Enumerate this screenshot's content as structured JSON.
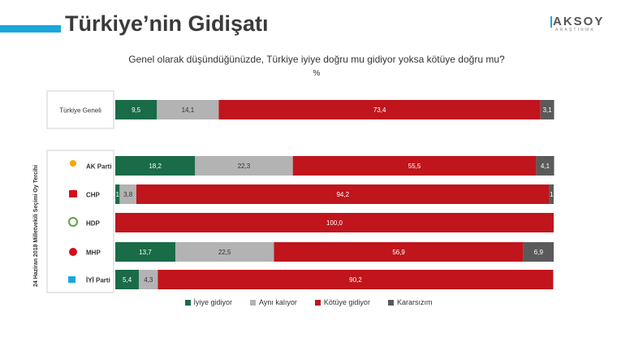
{
  "header": {
    "title": "Türkiye’nin Gidişatı",
    "logo_text": "AKSOY",
    "logo_subtext": "ARAŞTIRMA"
  },
  "question": "Genel olarak düşündüğünüzde, Türkiye iyiye doğru mu gidiyor yoksa kötüye doğru mu?",
  "unit": "%",
  "group_label": "24 Haziran 2018 Milletvekili Seçimi Oy Tercihi",
  "colors": {
    "accent": "#1aa7dd",
    "iyiye": "#1a6b47",
    "ayni": "#b3b3b3",
    "kotuye": "#c0151c",
    "kararsiz": "#5a5a5a"
  },
  "chart_data": {
    "type": "bar",
    "orientation": "horizontal",
    "stacked": true,
    "xlim": [
      0,
      100
    ],
    "categories": [
      "Türkiye Geneli",
      "AK Parti",
      "CHP",
      "HDP",
      "MHP",
      "İYİ Parti"
    ],
    "series": [
      {
        "name": "İyiye gidiyor",
        "values": [
          9.5,
          18.2,
          1,
          0,
          13.7,
          5.4
        ],
        "labels": [
          "9,5",
          "18,2",
          "1",
          "",
          "13,7",
          "5,4"
        ]
      },
      {
        "name": "Aynı kalıyor",
        "values": [
          14.1,
          22.3,
          3.8,
          0,
          22.5,
          4.3
        ],
        "labels": [
          "14,1",
          "22,3",
          "3,8",
          "",
          "22,5",
          "4,3"
        ]
      },
      {
        "name": "Kötüye gidiyor",
        "values": [
          73.4,
          55.5,
          94.2,
          100,
          56.9,
          90.2
        ],
        "labels": [
          "73,4",
          "55,5",
          "94,2",
          "100,0",
          "56,9",
          "90,2"
        ]
      },
      {
        "name": "Kararsızım",
        "values": [
          3.1,
          4.1,
          1,
          0,
          6.9,
          0
        ],
        "labels": [
          "3,1",
          "4,1",
          "1",
          "",
          "6,9",
          ""
        ]
      }
    ],
    "legend_position": "bottom"
  }
}
